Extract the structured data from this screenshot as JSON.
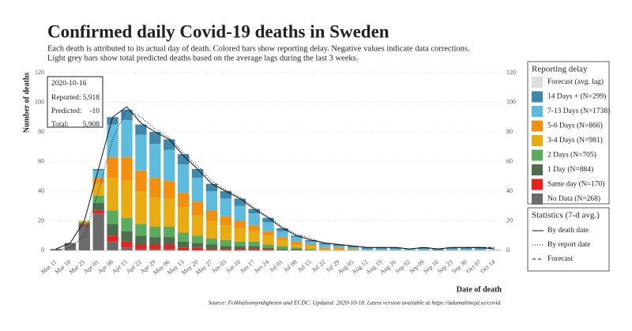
{
  "chart_data": {
    "type": "bar",
    "title": "Confirmed daily Covid-19 deaths in Sweden",
    "subtitle": [
      "Each death is attributed to its actual day of death. Colored bars show reporting delay. Negative values indicate data corrections.",
      "Light grey bars show total predicted deaths based on the average lags during the last 3 weeks."
    ],
    "y_label": "Number of deaths",
    "x_label": "Date of death",
    "source": "Source: Folkhälsomyndigheten and ECDC. Updated: 2020-10-18. Latest version available at https://adamaltmejd.se/covid.",
    "legend_title": "Reporting delay",
    "lines_legend_title": "Statistics (7-d avg.)",
    "categories": [
      "Mar 11",
      "Mar 18",
      "Mar 25",
      "Apr 01",
      "Apr 08",
      "Apr 15",
      "Apr 22",
      "Apr 29",
      "May 06",
      "May 13",
      "May 20",
      "May 27",
      "Jun 03",
      "Jun 10",
      "Jun 17",
      "Jun 24",
      "Jul 01",
      "Jul 08",
      "Jul 15",
      "Jul 22",
      "Jul 29",
      "Aug 05",
      "Aug 12",
      "Aug 19",
      "Aug 26",
      "Sep 02",
      "Sep 09",
      "Sep 16",
      "Sep 23",
      "Sep 30",
      "Oct 07",
      "Oct 14"
    ],
    "series": [
      {
        "name": "No Data (N=268)",
        "color": "#6b6b6b",
        "values": [
          1,
          5,
          16,
          25,
          6,
          2,
          1,
          1,
          1,
          0,
          0,
          0,
          0,
          0,
          0,
          0,
          0,
          0,
          0,
          0,
          0,
          0,
          0,
          0,
          0,
          0,
          0,
          0,
          0,
          0,
          0,
          0
        ]
      },
      {
        "name": "Same day (N=170)",
        "color": "#e8201e",
        "values": [
          0,
          0,
          1,
          2,
          4,
          4,
          3,
          3,
          3,
          2,
          2,
          1,
          1,
          1,
          1,
          1,
          0,
          0,
          0,
          0,
          0,
          0,
          0,
          0,
          0,
          0,
          0,
          0,
          0,
          0,
          0,
          0
        ]
      },
      {
        "name": "1 Day (N=884)",
        "color": "#4d6e4d",
        "values": [
          0,
          0,
          1,
          5,
          8,
          7,
          6,
          5,
          5,
          4,
          3,
          3,
          2,
          2,
          2,
          1,
          1,
          1,
          0,
          0,
          0,
          0,
          0,
          0,
          0,
          0,
          0,
          0,
          0,
          0,
          0,
          0
        ]
      },
      {
        "name": "2 Days (N=705)",
        "color": "#5aab5e",
        "values": [
          0,
          0,
          1,
          5,
          9,
          9,
          8,
          7,
          7,
          6,
          5,
          4,
          4,
          3,
          3,
          2,
          2,
          1,
          1,
          0,
          0,
          0,
          0,
          0,
          0,
          0,
          0,
          0,
          0,
          0,
          0,
          0
        ]
      },
      {
        "name": "3-4 Days (N=981)",
        "color": "#e9ab12",
        "values": [
          0,
          0,
          1,
          8,
          22,
          25,
          22,
          20,
          19,
          17,
          14,
          12,
          10,
          9,
          7,
          6,
          4,
          2,
          2,
          1,
          1,
          1,
          0,
          0,
          0,
          0,
          0,
          0,
          0,
          0,
          0,
          0
        ]
      },
      {
        "name": "5-6 Days (N=866)",
        "color": "#f38f0e",
        "values": [
          0,
          0,
          0,
          4,
          14,
          16,
          14,
          13,
          12,
          10,
          9,
          7,
          6,
          5,
          4,
          3,
          2,
          2,
          1,
          1,
          1,
          0,
          0,
          0,
          0,
          0,
          0,
          0,
          0,
          0,
          0,
          0
        ]
      },
      {
        "name": "7-13 Days (N=1738)",
        "color": "#5dbcdd",
        "values": [
          0,
          0,
          0,
          5,
          22,
          25,
          24,
          23,
          21,
          19,
          16,
          13,
          12,
          10,
          8,
          6,
          4,
          3,
          2,
          2,
          1,
          1,
          1,
          1,
          1,
          1,
          1,
          0,
          1,
          1,
          1,
          0
        ]
      },
      {
        "name": "14 Days + (N=299)",
        "color": "#3f88aa",
        "values": [
          0,
          0,
          0,
          1,
          5,
          7,
          7,
          8,
          7,
          7,
          6,
          5,
          5,
          5,
          3,
          3,
          2,
          1,
          1,
          1,
          1,
          1,
          1,
          1,
          1,
          0,
          1,
          1,
          1,
          1,
          1,
          0
        ]
      },
      {
        "name": "Forecast (avg. lag)",
        "color": "#dedede",
        "values": [
          0,
          0,
          0,
          0,
          0,
          0,
          0,
          0,
          0,
          0,
          0,
          0,
          0,
          0,
          0,
          0,
          0,
          0,
          0,
          0,
          0,
          0,
          0,
          0,
          0,
          0,
          0,
          0,
          0,
          0,
          0,
          1
        ]
      }
    ],
    "lines": [
      {
        "name": "By death date",
        "dash": "solid",
        "values": [
          1,
          5,
          20,
          55,
          90,
          97,
          86,
          80,
          75,
          64,
          55,
          45,
          40,
          35,
          28,
          22,
          15,
          10,
          7,
          5,
          4,
          3,
          2,
          2,
          2,
          1,
          2,
          1,
          2,
          2,
          2,
          1
        ]
      },
      {
        "name": "By report date",
        "dash": "dotted",
        "values": [
          0,
          2,
          10,
          40,
          75,
          95,
          90,
          82,
          76,
          66,
          57,
          47,
          41,
          36,
          29,
          23,
          16,
          11,
          8,
          5,
          4,
          3,
          2,
          2,
          2,
          1,
          2,
          1,
          2,
          2,
          2,
          2
        ]
      },
      {
        "name": "Forecast",
        "dash": "dashed",
        "values": [
          null,
          null,
          null,
          null,
          null,
          null,
          null,
          null,
          null,
          null,
          null,
          null,
          null,
          null,
          null,
          null,
          null,
          null,
          null,
          null,
          null,
          null,
          null,
          null,
          null,
          null,
          null,
          null,
          null,
          2,
          2,
          2
        ]
      }
    ],
    "ylim": [
      0,
      120
    ],
    "yticks": [
      0,
      20,
      40,
      60,
      80,
      100,
      120
    ],
    "grid": true,
    "annotation": {
      "date": "2020-10-16",
      "rows": [
        {
          "label": "Reported:",
          "value": "5,918"
        },
        {
          "label": "Predicted:",
          "value": "-10"
        },
        {
          "label": "Total:",
          "value": "5,908"
        }
      ]
    }
  }
}
